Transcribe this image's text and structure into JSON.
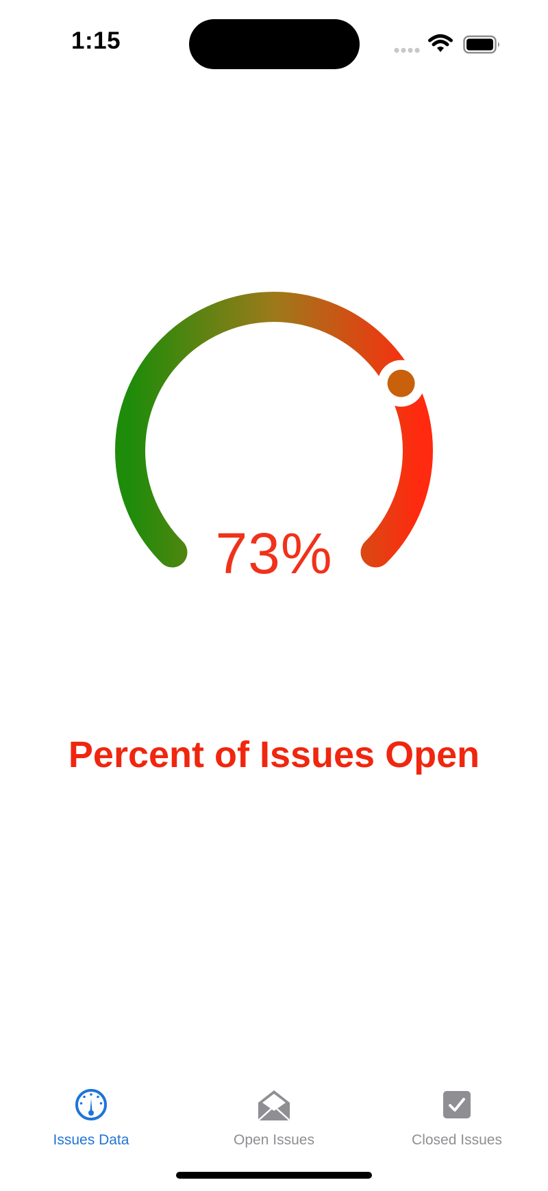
{
  "status_bar": {
    "time": "1:15"
  },
  "gauge": {
    "value_percent": 73,
    "value_label": "73%",
    "title": "Percent of Issues Open",
    "value_color": "#f0321a",
    "title_color": "#f0260f",
    "gradient_start_color": "#1e8c0a",
    "gradient_mid_color": "#9c7a1a",
    "gradient_end_color": "#ff2a0f"
  },
  "tab_bar": {
    "active_color": "#1e74d8",
    "inactive_color": "#8e8e93",
    "tabs": [
      {
        "label": "Issues Data",
        "icon": "gauge-icon",
        "active": true
      },
      {
        "label": "Open Issues",
        "icon": "envelope-open-icon",
        "active": false
      },
      {
        "label": "Closed Issues",
        "icon": "checkmark-square-icon",
        "active": false
      }
    ]
  }
}
